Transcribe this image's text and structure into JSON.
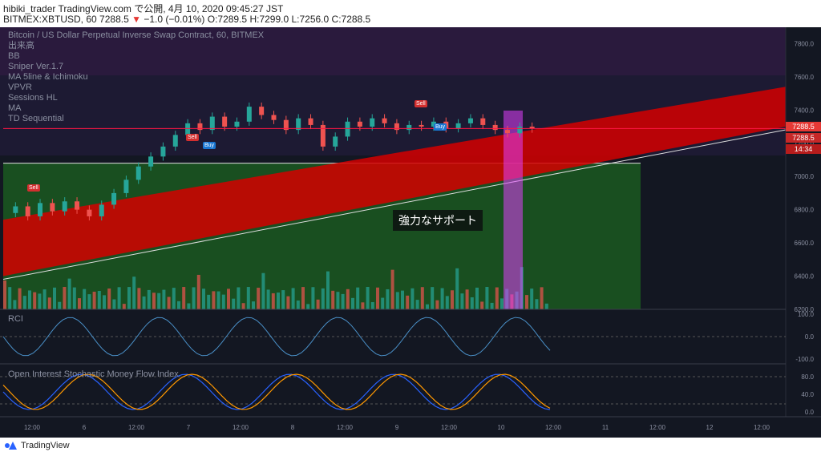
{
  "header": {
    "line1": "hibiki_trader TradingView.com で公開, 4月 10, 2020 09:45:27 JST",
    "symbol": "BITMEX:XBTUSD, 60",
    "last": "7288.5",
    "change": "−1.0 (−0.01%)",
    "ohlc": "O:7289.5 H:7299.0 L:7256.0 C:7288.5"
  },
  "indicators": [
    "Bitcoin / US Dollar Perpetual Inverse Swap Contract, 60, BITMEX",
    "出来高",
    "BB",
    "Sniper Ver.1.7",
    "MA 5line & Ichimoku",
    "VPVR",
    "Sessions HL",
    "MA",
    "TD Sequential"
  ],
  "support_label": "強力なサポート",
  "price_tags": [
    "7288.5",
    "7288.5",
    "14:34"
  ],
  "signals": {
    "sell": "Sell",
    "buy": "Buy"
  },
  "sub_panels": {
    "rci": "RCI",
    "stoch": "Open Interest Stochastic Money Flow Index"
  },
  "footer": {
    "brand": "TradingView"
  },
  "colors": {
    "bull": "#26a69a",
    "bear": "#ef5350",
    "channel": "#d50000",
    "support_zone": "#1b5e20",
    "bg": "#131722"
  },
  "chart_data": {
    "type": "candlestick",
    "y_axis": {
      "labels": [
        "7800.0",
        "7600.0",
        "7400.0",
        "7200.0",
        "7000.0",
        "6800.0",
        "6600.0",
        "6400.0",
        "6200.0"
      ],
      "range": [
        6200,
        7850
      ]
    },
    "x_axis": {
      "labels": [
        "12:00",
        "6",
        "12:00",
        "7",
        "12:00",
        "8",
        "12:00",
        "9",
        "12:00",
        "10",
        "12:00",
        "11",
        "12:00",
        "12",
        "12:00"
      ]
    },
    "rci_axis": [
      "100.0",
      "0.0",
      "-100.0"
    ],
    "stoch_axis": [
      "80.0",
      "40.0",
      "0.0"
    ],
    "price_path": [
      6780,
      6820,
      6760,
      6840,
      6790,
      6850,
      6800,
      6760,
      6830,
      6900,
      6980,
      7060,
      7120,
      7180,
      7250,
      7320,
      7280,
      7360,
      7300,
      7330,
      7420,
      7370,
      7340,
      7280,
      7350,
      7310,
      7180,
      7240,
      7330,
      7300,
      7350,
      7320,
      7280,
      7310,
      7300,
      7330,
      7290,
      7320,
      7350,
      7310,
      7280,
      7260,
      7300,
      7288
    ],
    "current_price": 7288.5,
    "support_level": 7080,
    "channel": {
      "upper_start": 6740,
      "upper_end": 7540,
      "lower_start": 6400,
      "lower_end": 7300
    }
  }
}
